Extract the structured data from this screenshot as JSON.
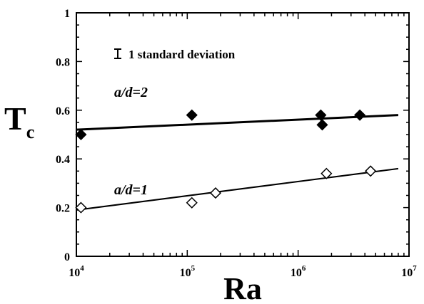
{
  "chart_data": {
    "type": "scatter",
    "title": "",
    "xlabel": "Ra",
    "ylabel": {
      "base": "T",
      "sub": "c"
    },
    "x_scale": "log",
    "xlim": [
      10000,
      10000000
    ],
    "ylim": [
      0,
      1
    ],
    "x_ticks": [
      {
        "value": 10000,
        "base": "10",
        "exp": "4"
      },
      {
        "value": 100000,
        "base": "10",
        "exp": "5"
      },
      {
        "value": 1000000,
        "base": "10",
        "exp": "6"
      },
      {
        "value": 10000000,
        "base": "10",
        "exp": "7"
      }
    ],
    "y_ticks": [
      {
        "value": 0,
        "label": "0"
      },
      {
        "value": 0.2,
        "label": "0.2"
      },
      {
        "value": 0.4,
        "label": "0.4"
      },
      {
        "value": 0.6,
        "label": "0.6"
      },
      {
        "value": 0.8,
        "label": "0.8"
      },
      {
        "value": 1,
        "label": "1"
      }
    ],
    "grid": false,
    "legend_text": "1 standard deviation",
    "series": [
      {
        "name": "a/d=2",
        "marker": "filled-diamond",
        "color": "#000000",
        "points": [
          {
            "x": 11000,
            "y": 0.5
          },
          {
            "x": 110000,
            "y": 0.58
          },
          {
            "x": 1600000,
            "y": 0.58
          },
          {
            "x": 1650000,
            "y": 0.54
          },
          {
            "x": 3600000,
            "y": 0.58
          }
        ],
        "fit": {
          "x": [
            10000,
            8000000
          ],
          "y": [
            0.52,
            0.58
          ]
        }
      },
      {
        "name": "a/d=1",
        "marker": "open-diamond",
        "color": "#000000",
        "points": [
          {
            "x": 11000,
            "y": 0.2
          },
          {
            "x": 110000,
            "y": 0.22
          },
          {
            "x": 180000,
            "y": 0.26
          },
          {
            "x": 1800000,
            "y": 0.34
          },
          {
            "x": 4500000,
            "y": 0.35
          }
        ],
        "fit": {
          "x": [
            10000,
            8000000
          ],
          "y": [
            0.19,
            0.36
          ]
        }
      }
    ]
  }
}
